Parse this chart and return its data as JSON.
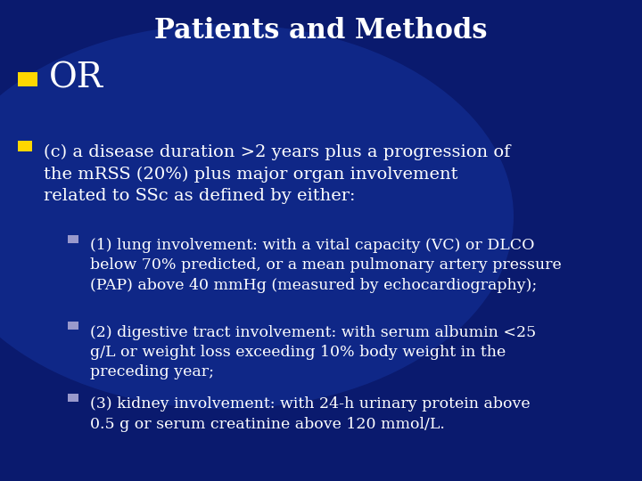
{
  "title": "Patients and Methods",
  "title_fontsize": 22,
  "title_color": "#FFFFFF",
  "bg_color": "#0a1a6e",
  "bullet1_text": "OR",
  "bullet1_fontsize": 28,
  "bullet1_color": "#FFFFFF",
  "bullet1_marker_color": "#FFD700",
  "bullet2_text": "(c) a disease duration >2 years plus a progression of\nthe mRSS (20%) plus major organ involvement\nrelated to SSc as defined by either:",
  "bullet2_fontsize": 14,
  "bullet2_color": "#FFFFFF",
  "bullet2_marker_color": "#FFD700",
  "sub_bullets": [
    "(1) lung involvement: with a vital capacity (VC) or DLCO\nbelow 70% predicted, or a mean pulmonary artery pressure\n(PAP) above 40 mmHg (measured by echocardiography);",
    "(2) digestive tract involvement: with serum albumin <25\ng/L or weight loss exceeding 10% body weight in the\npreceding year;",
    "(3) kidney involvement: with 24-h urinary protein above\n0.5 g or serum creatinine above 120 mmol/L."
  ],
  "sub_bullet_fontsize": 12.5,
  "sub_bullet_color": "#FFFFFF",
  "sub_bullet_marker_color": "#9999CC"
}
